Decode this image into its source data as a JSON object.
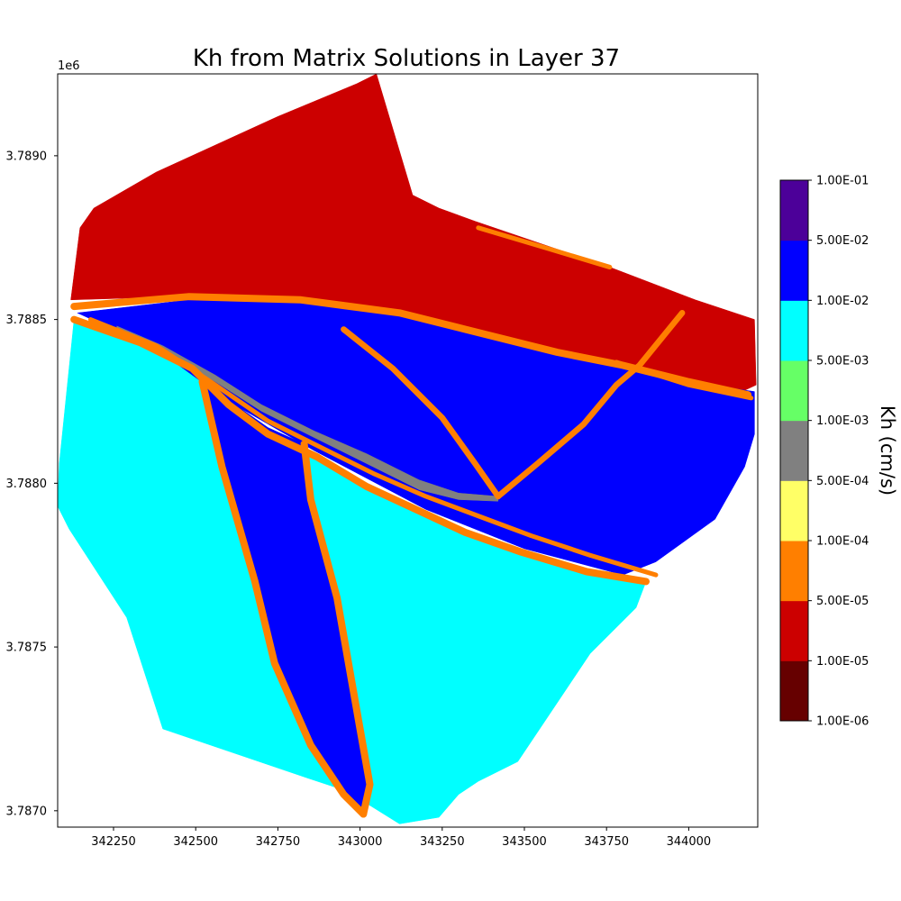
{
  "chart_data": {
    "type": "heatmap",
    "title": "Kh from Matrix Solutions in Layer 37",
    "xlabel": "",
    "ylabel": "",
    "xlim": [
      342080,
      344210
    ],
    "ylim": [
      3786950,
      3789250
    ],
    "x_ticks": [
      342250,
      342500,
      342750,
      343000,
      343250,
      343500,
      343750,
      344000
    ],
    "x_tick_labels": [
      "342250",
      "342500",
      "342750",
      "343000",
      "343250",
      "343500",
      "343750",
      "344000"
    ],
    "y_ticks": [
      3787000,
      3787500,
      3788000,
      3788500,
      3789000
    ],
    "y_tick_labels": [
      "3.7870",
      "3.7875",
      "3.7880",
      "3.7885",
      "3.7890"
    ],
    "y_offset_label": "1e6",
    "grid": false,
    "colorbar": {
      "title": "Kh (cm/s)",
      "scale": "log",
      "boundaries": [
        1e-06,
        1e-05,
        5e-05,
        0.0001,
        0.0005,
        0.001,
        0.005,
        0.01,
        0.05,
        0.1
      ],
      "tick_labels": [
        "1.00E-06",
        "1.00E-05",
        "5.00E-05",
        "1.00E-04",
        "5.00E-04",
        "1.00E-03",
        "5.00E-03",
        "1.00E-02",
        "5.00E-02",
        "1.00E-01"
      ],
      "colors": [
        "#660000",
        "#cc0000",
        "#ff7f00",
        "#ffff66",
        "#808080",
        "#66ff66",
        "#00ffff",
        "#0000ff",
        "#4c0099"
      ]
    },
    "zones": [
      {
        "name": "northern-zone",
        "color": "#cc0000",
        "points": [
          [
            342148,
            3788780
          ],
          [
            342190,
            3788840
          ],
          [
            342380,
            3788950
          ],
          [
            342750,
            3789120
          ],
          [
            342990,
            3789220
          ],
          [
            343050,
            3789250
          ],
          [
            343160,
            3788880
          ],
          [
            343240,
            3788840
          ],
          [
            343350,
            3788800
          ],
          [
            343760,
            3788660
          ],
          [
            344020,
            3788560
          ],
          [
            344200,
            3788500
          ],
          [
            344205,
            3788300
          ],
          [
            344120,
            3788260
          ],
          [
            343900,
            3788320
          ],
          [
            343500,
            3788430
          ],
          [
            343200,
            3788480
          ],
          [
            342800,
            3788550
          ],
          [
            342450,
            3788570
          ],
          [
            342120,
            3788560
          ]
        ]
      },
      {
        "name": "southwest-zone",
        "color": "#00ffff",
        "points": [
          [
            342130,
            3788500
          ],
          [
            342330,
            3788430
          ],
          [
            342490,
            3788350
          ],
          [
            342600,
            3788240
          ],
          [
            342720,
            3788150
          ],
          [
            342870,
            3788080
          ],
          [
            343020,
            3787990
          ],
          [
            343170,
            3787920
          ],
          [
            343320,
            3787850
          ],
          [
            343490,
            3787790
          ],
          [
            343690,
            3787730
          ],
          [
            343870,
            3787700
          ],
          [
            343840,
            3787620
          ],
          [
            343700,
            3787480
          ],
          [
            343480,
            3787150
          ],
          [
            343360,
            3787090
          ],
          [
            343300,
            3787050
          ],
          [
            343240,
            3786980
          ],
          [
            343120,
            3786960
          ],
          [
            342960,
            3787060
          ],
          [
            342840,
            3787100
          ],
          [
            342400,
            3787250
          ],
          [
            342290,
            3787590
          ],
          [
            342115,
            3787860
          ],
          [
            342080,
            3787930
          ],
          [
            342085,
            3788060
          ]
        ]
      },
      {
        "name": "central-channel",
        "color": "#0000ff",
        "points": [
          [
            342140,
            3788520
          ],
          [
            342480,
            3788560
          ],
          [
            342820,
            3788560
          ],
          [
            343120,
            3788520
          ],
          [
            343320,
            3788470
          ],
          [
            343600,
            3788400
          ],
          [
            343800,
            3788360
          ],
          [
            344000,
            3788310
          ],
          [
            344200,
            3788280
          ],
          [
            344200,
            3788150
          ],
          [
            344170,
            3788050
          ],
          [
            344080,
            3787890
          ],
          [
            343900,
            3787760
          ],
          [
            343800,
            3787720
          ],
          [
            343500,
            3787800
          ],
          [
            343200,
            3787920
          ],
          [
            342860,
            3788100
          ],
          [
            342600,
            3788250
          ],
          [
            342380,
            3788410
          ]
        ]
      },
      {
        "name": "southern-channel",
        "color": "#0000ff",
        "points": [
          [
            342520,
            3788310
          ],
          [
            342720,
            3788170
          ],
          [
            342830,
            3788120
          ],
          [
            342850,
            3787950
          ],
          [
            342930,
            3787650
          ],
          [
            343000,
            3787250
          ],
          [
            343030,
            3787080
          ],
          [
            343010,
            3786990
          ],
          [
            342950,
            3787050
          ],
          [
            342850,
            3787200
          ],
          [
            342740,
            3787450
          ],
          [
            342680,
            3787700
          ],
          [
            342580,
            3788050
          ]
        ]
      },
      {
        "name": "gray-lens",
        "color": "#808080",
        "points": [
          [
            342260,
            3788480
          ],
          [
            342400,
            3788420
          ],
          [
            342560,
            3788330
          ],
          [
            342700,
            3788240
          ],
          [
            342860,
            3788160
          ],
          [
            343020,
            3788090
          ],
          [
            343180,
            3788010
          ],
          [
            343300,
            3787970
          ],
          [
            343420,
            3787960
          ],
          [
            343420,
            3787945
          ],
          [
            343300,
            3787950
          ],
          [
            343180,
            3787980
          ],
          [
            343020,
            3788060
          ],
          [
            342860,
            3788140
          ],
          [
            342700,
            3788220
          ],
          [
            342560,
            3788310
          ],
          [
            342400,
            3788400
          ],
          [
            342260,
            3788460
          ]
        ]
      }
    ],
    "boundary_bands": [
      {
        "name": "band-north-channel-edge",
        "color": "#ff7f00",
        "width_m": 22,
        "points": [
          [
            342130,
            3788540
          ],
          [
            342480,
            3788570
          ],
          [
            342820,
            3788560
          ],
          [
            343120,
            3788520
          ],
          [
            343320,
            3788470
          ],
          [
            343600,
            3788400
          ],
          [
            343800,
            3788360
          ],
          [
            344000,
            3788310
          ],
          [
            344180,
            3788270
          ]
        ]
      },
      {
        "name": "band-southwest-edge",
        "color": "#ff7f00",
        "width_m": 22,
        "points": [
          [
            342130,
            3788500
          ],
          [
            342330,
            3788430
          ],
          [
            342490,
            3788350
          ],
          [
            342600,
            3788240
          ],
          [
            342720,
            3788150
          ],
          [
            342870,
            3788080
          ],
          [
            343020,
            3787990
          ],
          [
            343170,
            3787920
          ],
          [
            343320,
            3787850
          ],
          [
            343490,
            3787790
          ],
          [
            343690,
            3787730
          ],
          [
            343870,
            3787700
          ]
        ]
      },
      {
        "name": "band-south-channel-west",
        "color": "#ff7f00",
        "width_m": 22,
        "points": [
          [
            342520,
            3788310
          ],
          [
            342580,
            3788050
          ],
          [
            342680,
            3787700
          ],
          [
            342740,
            3787450
          ],
          [
            342850,
            3787200
          ],
          [
            342950,
            3787050
          ],
          [
            343010,
            3786990
          ]
        ]
      },
      {
        "name": "band-south-channel-east",
        "color": "#ff7f00",
        "width_m": 22,
        "points": [
          [
            342830,
            3788120
          ],
          [
            342850,
            3787950
          ],
          [
            342930,
            3787650
          ],
          [
            343000,
            3787250
          ],
          [
            343030,
            3787080
          ],
          [
            343010,
            3786990
          ]
        ]
      },
      {
        "name": "band-diagonal-northwest",
        "color": "#ff7f00",
        "width_m": 18,
        "points": [
          [
            342950,
            3788470
          ],
          [
            343100,
            3788350
          ],
          [
            343250,
            3788200
          ],
          [
            343350,
            3788060
          ],
          [
            343420,
            3787960
          ]
        ]
      },
      {
        "name": "band-diagonal-northeast",
        "color": "#ff7f00",
        "width_m": 18,
        "points": [
          [
            343420,
            3787960
          ],
          [
            343540,
            3788060
          ],
          [
            343680,
            3788180
          ],
          [
            343780,
            3788300
          ],
          [
            343850,
            3788360
          ],
          [
            343980,
            3788520
          ]
        ]
      },
      {
        "name": "band-inner-channel",
        "color": "#ff7f00",
        "width_m": 14,
        "points": [
          [
            342180,
            3788500
          ],
          [
            342380,
            3788420
          ],
          [
            342560,
            3788300
          ],
          [
            342720,
            3788190
          ],
          [
            342880,
            3788110
          ],
          [
            343040,
            3788030
          ],
          [
            343200,
            3787960
          ],
          [
            343360,
            3787900
          ],
          [
            343520,
            3787840
          ],
          [
            343700,
            3787780
          ],
          [
            343900,
            3787720
          ]
        ]
      },
      {
        "name": "band-north-dashes",
        "color": "#ff7f00",
        "width_m": 14,
        "points": [
          [
            343360,
            3788780
          ],
          [
            343560,
            3788720
          ],
          [
            343760,
            3788660
          ]
        ]
      },
      {
        "name": "band-east-edge",
        "color": "#ff7f00",
        "width_m": 14,
        "points": [
          [
            343780,
            3788370
          ],
          [
            344000,
            3788300
          ],
          [
            344190,
            3788260
          ]
        ]
      }
    ]
  }
}
